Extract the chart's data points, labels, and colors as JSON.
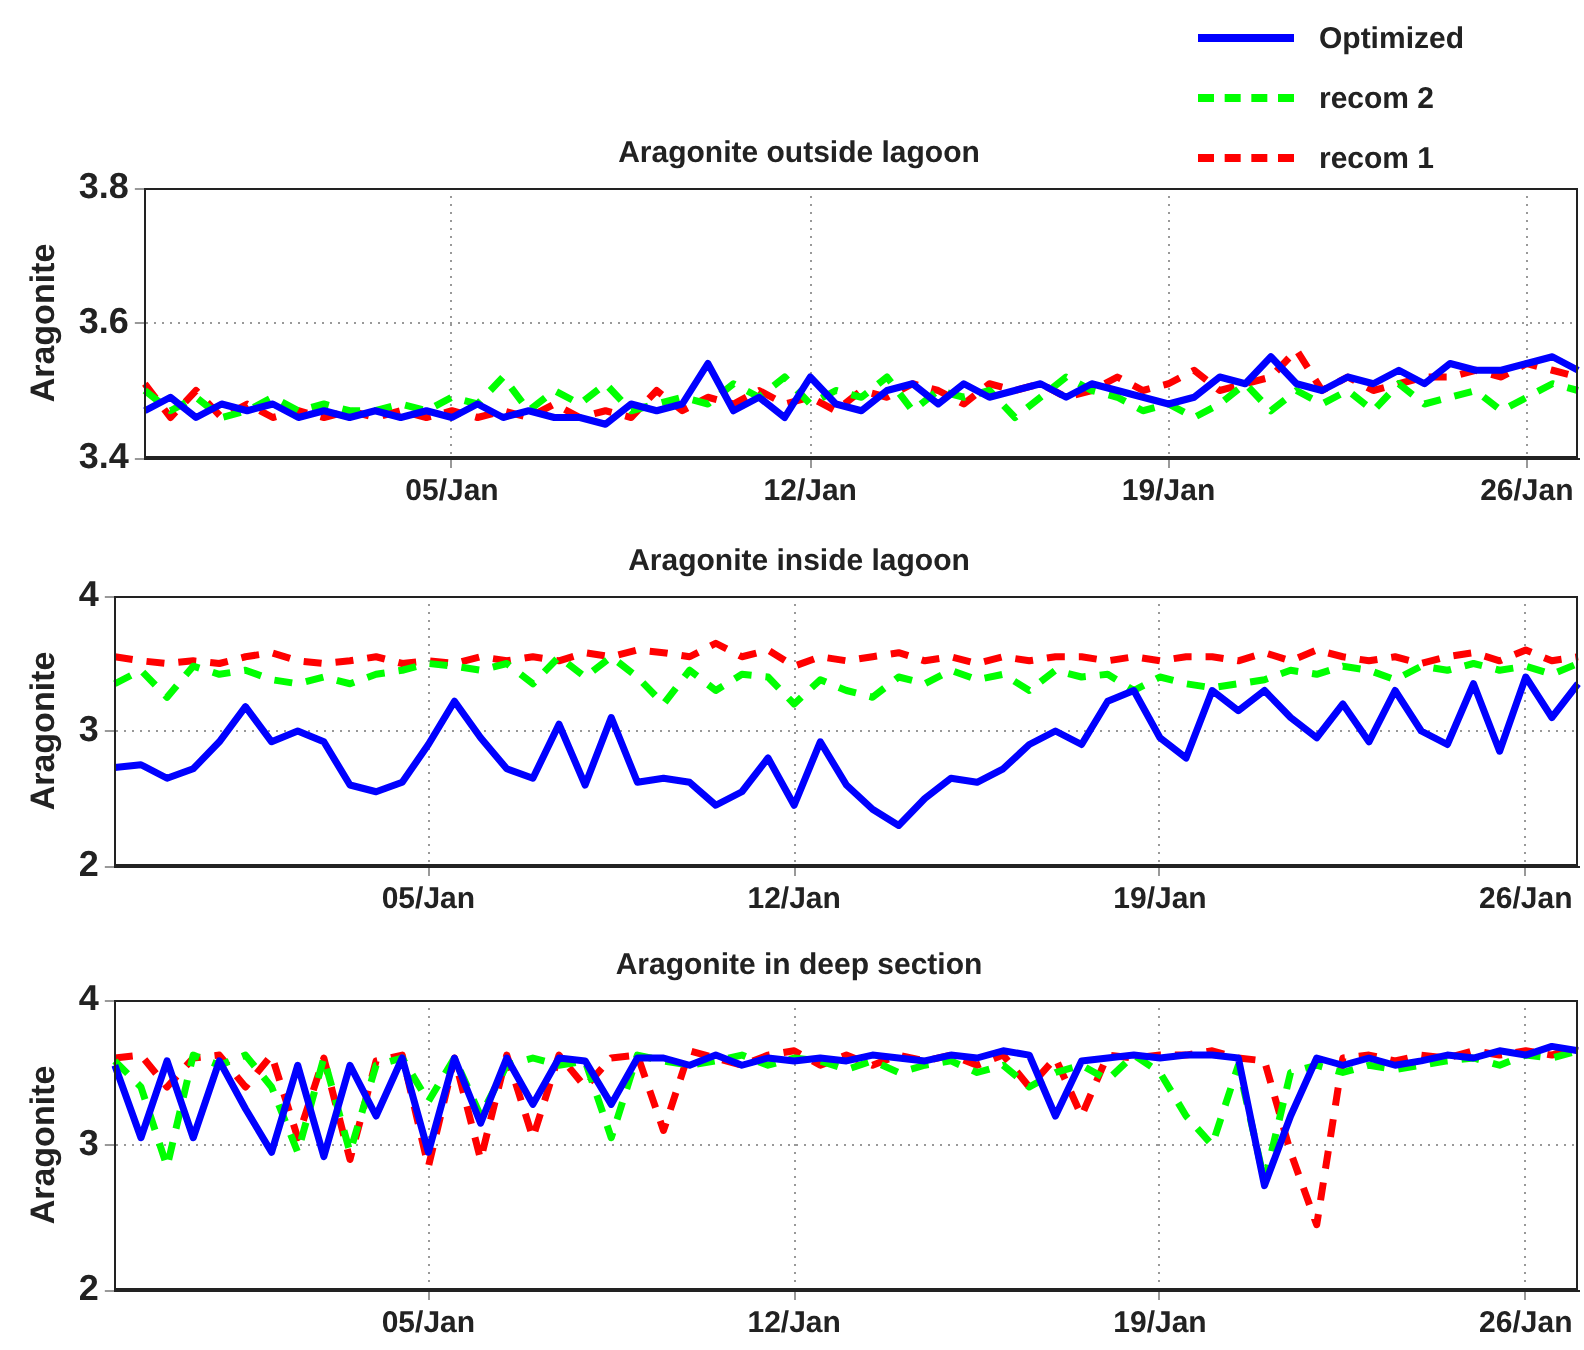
{
  "chart_data": [
    {
      "type": "line",
      "title": "Aragonite outside lagoon",
      "ylabel": "Aragonite",
      "legend": "top right",
      "grid": true,
      "categories": [
        null,
        null,
        null,
        null,
        null,
        null,
        null,
        null,
        null,
        null,
        null,
        null,
        "05/Jan",
        null,
        null,
        null,
        null,
        null,
        null,
        null,
        null,
        null,
        null,
        null,
        null,
        null,
        "12/Jan",
        null,
        null,
        null,
        null,
        null,
        null,
        null,
        null,
        null,
        null,
        null,
        null,
        null,
        "19/Jan",
        null,
        null,
        null,
        null,
        null,
        null,
        null,
        null,
        null,
        null,
        null,
        null,
        null,
        "26/Jan",
        null,
        null
      ],
      "ylim": [
        3.4,
        3.8
      ],
      "yticks": [
        3.4,
        3.6,
        3.8
      ],
      "series": [
        {
          "name": "Optimized",
          "color": "#0000ff",
          "line_style": "solid",
          "values": [
            3.47,
            3.49,
            3.46,
            3.48,
            3.47,
            3.48,
            3.46,
            3.47,
            3.46,
            3.47,
            3.46,
            3.47,
            3.46,
            3.48,
            3.46,
            3.47,
            3.46,
            3.46,
            3.45,
            3.48,
            3.47,
            3.48,
            3.54,
            3.47,
            3.49,
            3.46,
            3.52,
            3.48,
            3.47,
            3.5,
            3.51,
            3.48,
            3.51,
            3.49,
            3.5,
            3.51,
            3.49,
            3.51,
            3.5,
            3.49,
            3.48,
            3.49,
            3.52,
            3.51,
            3.55,
            3.51,
            3.5,
            3.52,
            3.51,
            3.53,
            3.51,
            3.54,
            3.53,
            3.53,
            3.54,
            3.55,
            3.53
          ]
        },
        {
          "name": "recom 2",
          "color": "#00ff00",
          "line_style": "dashed",
          "values": [
            3.5,
            3.47,
            3.49,
            3.46,
            3.47,
            3.49,
            3.47,
            3.48,
            3.47,
            3.47,
            3.48,
            3.47,
            3.49,
            3.48,
            3.52,
            3.47,
            3.5,
            3.48,
            3.51,
            3.47,
            3.48,
            3.49,
            3.48,
            3.51,
            3.49,
            3.52,
            3.48,
            3.5,
            3.49,
            3.52,
            3.47,
            3.5,
            3.49,
            3.5,
            3.46,
            3.49,
            3.52,
            3.5,
            3.49,
            3.47,
            3.48,
            3.46,
            3.48,
            3.51,
            3.47,
            3.5,
            3.48,
            3.5,
            3.47,
            3.51,
            3.48,
            3.49,
            3.5,
            3.47,
            3.49,
            3.51,
            3.5
          ]
        },
        {
          "name": "recom 1",
          "color": "#ff0000",
          "line_style": "dashed",
          "values": [
            3.51,
            3.46,
            3.5,
            3.46,
            3.48,
            3.46,
            3.47,
            3.46,
            3.47,
            3.46,
            3.47,
            3.46,
            3.47,
            3.46,
            3.47,
            3.46,
            3.48,
            3.46,
            3.47,
            3.46,
            3.5,
            3.47,
            3.49,
            3.48,
            3.5,
            3.48,
            3.49,
            3.47,
            3.5,
            3.49,
            3.51,
            3.5,
            3.48,
            3.51,
            3.5,
            3.51,
            3.49,
            3.5,
            3.52,
            3.5,
            3.51,
            3.53,
            3.5,
            3.51,
            3.52,
            3.56,
            3.5,
            3.52,
            3.5,
            3.51,
            3.52,
            3.52,
            3.53,
            3.52,
            3.54,
            3.53,
            3.52
          ]
        }
      ]
    },
    {
      "type": "line",
      "title": "Aragonite inside lagoon",
      "ylabel": "Aragonite",
      "grid": true,
      "categories": [
        null,
        null,
        null,
        null,
        null,
        null,
        null,
        null,
        null,
        null,
        null,
        null,
        "05/Jan",
        null,
        null,
        null,
        null,
        null,
        null,
        null,
        null,
        null,
        null,
        null,
        null,
        null,
        "12/Jan",
        null,
        null,
        null,
        null,
        null,
        null,
        null,
        null,
        null,
        null,
        null,
        null,
        null,
        "19/Jan",
        null,
        null,
        null,
        null,
        null,
        null,
        null,
        null,
        null,
        null,
        null,
        null,
        null,
        "26/Jan",
        null,
        null
      ],
      "ylim": [
        2,
        4
      ],
      "yticks": [
        2,
        3,
        4
      ],
      "series": [
        {
          "color": "#0000ff",
          "line_style": "solid",
          "values": [
            2.73,
            2.75,
            2.65,
            2.72,
            2.92,
            3.18,
            2.92,
            3.0,
            2.92,
            2.6,
            2.55,
            2.62,
            2.9,
            3.22,
            2.95,
            2.72,
            2.65,
            3.05,
            2.6,
            3.1,
            2.62,
            2.65,
            2.62,
            2.45,
            2.55,
            2.8,
            2.45,
            2.92,
            2.6,
            2.42,
            2.3,
            2.5,
            2.65,
            2.62,
            2.72,
            2.9,
            3.0,
            2.9,
            3.22,
            3.3,
            2.95,
            2.8,
            3.3,
            3.15,
            3.3,
            3.1,
            2.95,
            3.2,
            2.92,
            3.3,
            3.0,
            2.9,
            3.35,
            2.85,
            3.4,
            3.1,
            3.35
          ]
        },
        {
          "color": "#00ff00",
          "line_style": "dashed",
          "values": [
            3.35,
            3.45,
            3.25,
            3.48,
            3.42,
            3.45,
            3.38,
            3.35,
            3.4,
            3.35,
            3.42,
            3.45,
            3.5,
            3.48,
            3.45,
            3.5,
            3.35,
            3.55,
            3.4,
            3.55,
            3.4,
            3.2,
            3.45,
            3.3,
            3.42,
            3.4,
            3.2,
            3.38,
            3.3,
            3.25,
            3.4,
            3.35,
            3.45,
            3.38,
            3.42,
            3.3,
            3.45,
            3.4,
            3.42,
            3.3,
            3.4,
            3.35,
            3.32,
            3.35,
            3.38,
            3.45,
            3.42,
            3.48,
            3.45,
            3.38,
            3.48,
            3.45,
            3.5,
            3.45,
            3.48,
            3.42,
            3.5
          ]
        },
        {
          "color": "#ff0000",
          "line_style": "dashed",
          "values": [
            3.55,
            3.52,
            3.5,
            3.52,
            3.5,
            3.55,
            3.58,
            3.52,
            3.5,
            3.52,
            3.55,
            3.5,
            3.52,
            3.5,
            3.55,
            3.52,
            3.55,
            3.52,
            3.58,
            3.55,
            3.6,
            3.58,
            3.55,
            3.65,
            3.55,
            3.6,
            3.48,
            3.55,
            3.52,
            3.55,
            3.58,
            3.52,
            3.55,
            3.5,
            3.55,
            3.52,
            3.55,
            3.55,
            3.52,
            3.55,
            3.52,
            3.55,
            3.55,
            3.52,
            3.58,
            3.52,
            3.6,
            3.55,
            3.52,
            3.55,
            3.5,
            3.55,
            3.58,
            3.52,
            3.6,
            3.52,
            3.55
          ]
        }
      ]
    },
    {
      "type": "line",
      "title": "Aragonite in deep section",
      "ylabel": "Aragonite",
      "grid": true,
      "categories": [
        null,
        null,
        null,
        null,
        null,
        null,
        null,
        null,
        null,
        null,
        null,
        null,
        "05/Jan",
        null,
        null,
        null,
        null,
        null,
        null,
        null,
        null,
        null,
        null,
        null,
        null,
        null,
        "12/Jan",
        null,
        null,
        null,
        null,
        null,
        null,
        null,
        null,
        null,
        null,
        null,
        null,
        null,
        "19/Jan",
        null,
        null,
        null,
        null,
        null,
        null,
        null,
        null,
        null,
        null,
        null,
        null,
        null,
        "26/Jan",
        null,
        null
      ],
      "ylim": [
        2,
        4
      ],
      "yticks": [
        2,
        3,
        4
      ],
      "series": [
        {
          "color": "#0000ff",
          "line_style": "solid",
          "values": [
            3.55,
            3.05,
            3.58,
            3.05,
            3.58,
            3.25,
            2.95,
            3.55,
            2.92,
            3.55,
            3.2,
            3.6,
            2.95,
            3.6,
            3.15,
            3.6,
            3.28,
            3.6,
            3.58,
            3.28,
            3.6,
            3.6,
            3.55,
            3.62,
            3.55,
            3.6,
            3.58,
            3.6,
            3.58,
            3.62,
            3.6,
            3.58,
            3.62,
            3.6,
            3.65,
            3.62,
            3.2,
            3.58,
            3.6,
            3.62,
            3.6,
            3.62,
            3.62,
            3.6,
            2.72,
            3.2,
            3.6,
            3.55,
            3.6,
            3.55,
            3.58,
            3.62,
            3.6,
            3.65,
            3.62,
            3.68,
            3.65
          ]
        },
        {
          "color": "#00ff00",
          "line_style": "dashed",
          "values": [
            3.58,
            3.4,
            2.85,
            3.62,
            3.55,
            3.62,
            3.4,
            2.95,
            3.6,
            2.95,
            3.55,
            3.6,
            3.3,
            3.6,
            3.2,
            3.55,
            3.6,
            3.55,
            3.58,
            3.05,
            3.62,
            3.58,
            3.55,
            3.58,
            3.62,
            3.55,
            3.6,
            3.58,
            3.52,
            3.58,
            3.5,
            3.55,
            3.58,
            3.5,
            3.55,
            3.4,
            3.5,
            3.55,
            3.45,
            3.62,
            3.5,
            3.2,
            3.0,
            3.55,
            2.75,
            3.5,
            3.55,
            3.5,
            3.55,
            3.52,
            3.55,
            3.58,
            3.6,
            3.55,
            3.62,
            3.6,
            3.65
          ]
        },
        {
          "color": "#ff0000",
          "line_style": "dashed",
          "values": [
            3.6,
            3.62,
            3.4,
            3.6,
            3.62,
            3.4,
            3.62,
            3.05,
            3.6,
            2.9,
            3.58,
            3.62,
            2.85,
            3.6,
            2.9,
            3.62,
            3.05,
            3.62,
            3.4,
            3.6,
            3.62,
            3.1,
            3.65,
            3.6,
            3.55,
            3.62,
            3.65,
            3.55,
            3.62,
            3.55,
            3.62,
            3.58,
            3.62,
            3.55,
            3.62,
            3.4,
            3.6,
            3.2,
            3.62,
            3.6,
            3.62,
            3.62,
            3.65,
            3.6,
            3.58,
            2.95,
            2.45,
            3.6,
            3.62,
            3.58,
            3.62,
            3.6,
            3.65,
            3.62,
            3.65,
            3.62,
            3.68
          ]
        }
      ]
    }
  ]
}
